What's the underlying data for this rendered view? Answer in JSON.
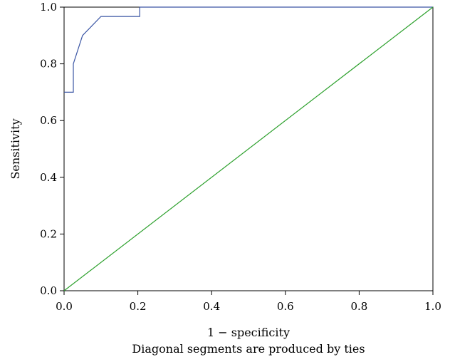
{
  "chart_data": {
    "type": "line",
    "title": "",
    "xlabel": "1 − specificity",
    "ylabel": "Sensitivity",
    "footnote": "Diagonal segments are produced by ties",
    "xlim": [
      0.0,
      1.0
    ],
    "ylim": [
      0.0,
      1.0
    ],
    "xticks": [
      "0.0",
      "0.2",
      "0.4",
      "0.6",
      "0.8",
      "1.0"
    ],
    "yticks": [
      "0.0",
      "0.2",
      "0.4",
      "0.6",
      "0.8",
      "1.0"
    ],
    "grid": false,
    "legend": "none",
    "series": [
      {
        "color": "#3a55a4",
        "x": [
          0.0,
          0.025,
          0.025,
          0.05,
          0.1,
          0.1,
          0.2,
          0.205,
          0.205,
          1.0
        ],
        "y": [
          0.7,
          0.7,
          0.8,
          0.9,
          0.967,
          0.967,
          0.967,
          0.967,
          1.0,
          1.0
        ]
      },
      {
        "color": "#2ca02c",
        "x": [
          0.0,
          1.0
        ],
        "y": [
          0.0,
          1.0
        ]
      }
    ]
  }
}
